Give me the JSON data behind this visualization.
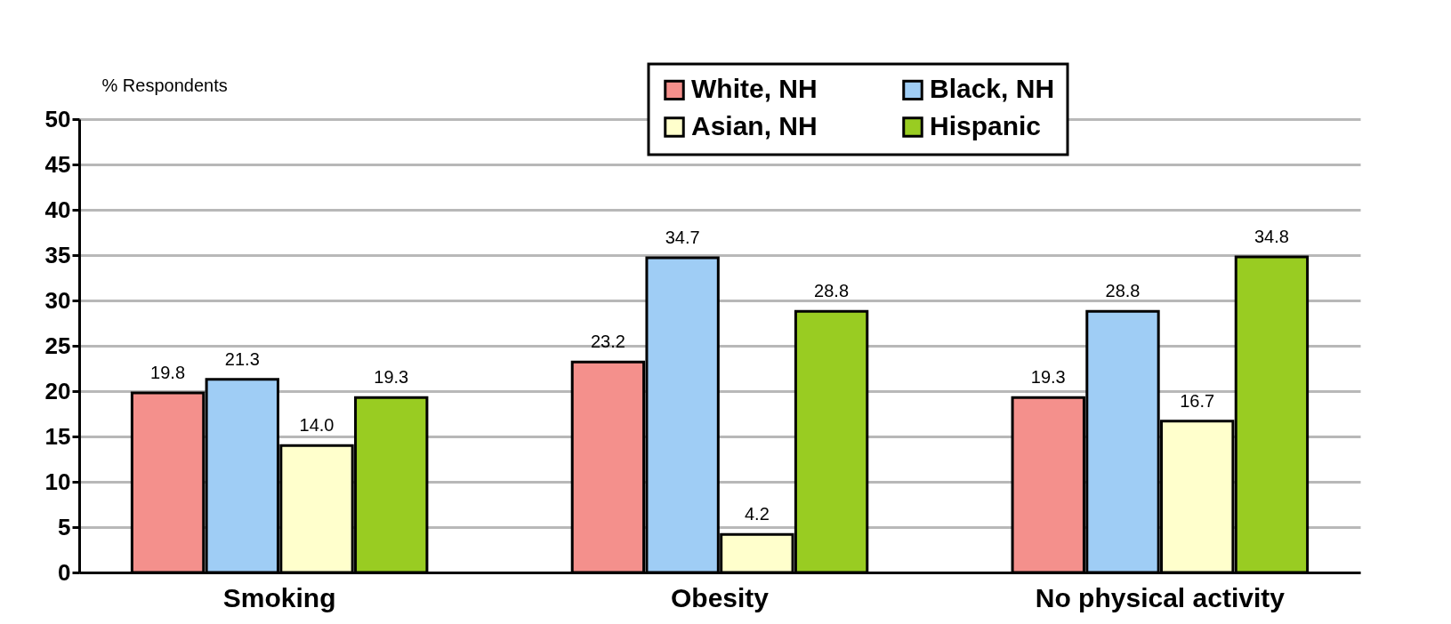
{
  "chart_data": {
    "type": "bar",
    "ylabel": "% Respondents",
    "categories": [
      "Smoking",
      "Obesity",
      "No physical activity"
    ],
    "series": [
      {
        "name": "White, NH",
        "color": "#f4908c",
        "values": [
          19.8,
          23.2,
          19.3
        ]
      },
      {
        "name": "Black, NH",
        "color": "#9fcdf5",
        "values": [
          21.3,
          34.7,
          28.8
        ]
      },
      {
        "name": "Asian, NH",
        "color": "#ffffcc",
        "values": [
          14.0,
          4.2,
          16.7
        ]
      },
      {
        "name": "Hispanic",
        "color": "#99cc22",
        "values": [
          19.3,
          28.8,
          34.8
        ]
      }
    ],
    "value_labels": [
      [
        "19.8",
        "23.2",
        "19.3"
      ],
      [
        "21.3",
        "34.7",
        "28.8"
      ],
      [
        "14.0",
        "4.2",
        "16.7"
      ],
      [
        "19.3",
        "28.8",
        "34.8"
      ]
    ],
    "ylim": [
      0,
      50
    ],
    "yticks": [
      0,
      5,
      10,
      15,
      20,
      25,
      30,
      35,
      40,
      45,
      50
    ],
    "grid": "y",
    "legend": "top right"
  }
}
